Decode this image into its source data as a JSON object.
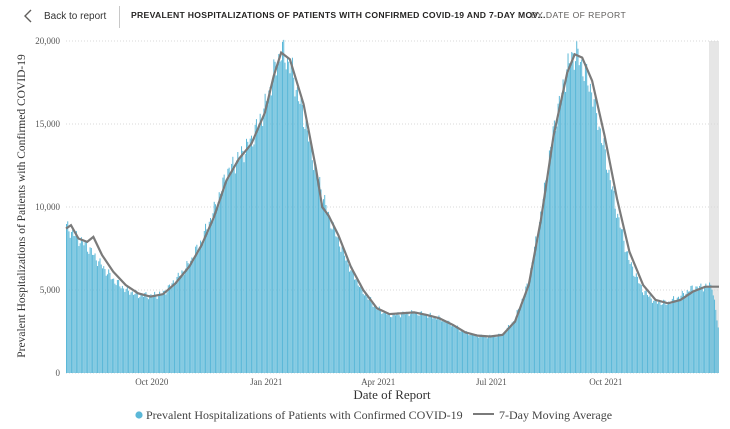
{
  "header": {
    "back_label": "Back to report",
    "title": "PREVALENT HOSPITALIZATIONS OF PATIENTS WITH CONFIRMED COVID-19 AND 7-DAY MOV...",
    "subtitle": "BY DATE OF REPORT"
  },
  "colors": {
    "bars": "#5bb8d8",
    "line": "#7a7a7a",
    "grid": "#d8d8d8",
    "selection_band": "#e6e6e6"
  },
  "chart_data": {
    "type": "bar",
    "xlabel": "Date of Report",
    "ylabel": "Prevalent Hospitalizations of Patients with Confirmed COVID-19",
    "ylim": [
      0,
      20000
    ],
    "y_ticks": [
      "0",
      "5,000",
      "10,000",
      "15,000",
      "20,000"
    ],
    "x_ticks": [
      "Oct 2020",
      "Jan 2021",
      "Apr 2021",
      "Jul 2021",
      "Oct 2021"
    ],
    "x_range": [
      "2020-07-24",
      "2021-12-31"
    ],
    "legend": [
      {
        "name": "Prevalent Hospitalizations of Patients with Confirmed COVID-19",
        "marker": "dot"
      },
      {
        "name": "7-Day Moving Average",
        "marker": "line"
      }
    ],
    "legend_position": "bottom",
    "grid": true,
    "series": [
      {
        "name": "Prevalent Hospitalizations of Patients with Confirmed COVID-19",
        "kind": "bar",
        "points": [
          [
            "2020-07-24",
            8800
          ],
          [
            "2020-08-01",
            8200
          ],
          [
            "2020-08-10",
            7600
          ],
          [
            "2020-08-20",
            6600
          ],
          [
            "2020-08-31",
            5600
          ],
          [
            "2020-09-10",
            5000
          ],
          [
            "2020-09-20",
            4700
          ],
          [
            "2020-10-01",
            4650
          ],
          [
            "2020-10-10",
            4800
          ],
          [
            "2020-10-20",
            5600
          ],
          [
            "2020-10-31",
            6600
          ],
          [
            "2020-11-10",
            8000
          ],
          [
            "2020-11-20",
            9800
          ],
          [
            "2020-11-30",
            12000
          ],
          [
            "2020-12-10",
            13000
          ],
          [
            "2020-12-20",
            14000
          ],
          [
            "2020-12-31",
            16000
          ],
          [
            "2021-01-07",
            18000
          ],
          [
            "2021-01-13",
            19400
          ],
          [
            "2021-01-20",
            18600
          ],
          [
            "2021-01-31",
            15500
          ],
          [
            "2021-02-10",
            12200
          ],
          [
            "2021-02-20",
            9500
          ],
          [
            "2021-02-28",
            8000
          ],
          [
            "2021-03-10",
            6200
          ],
          [
            "2021-03-20",
            4900
          ],
          [
            "2021-03-31",
            3900
          ],
          [
            "2021-04-10",
            3500
          ],
          [
            "2021-04-20",
            3550
          ],
          [
            "2021-04-30",
            3650
          ],
          [
            "2021-05-10",
            3500
          ],
          [
            "2021-05-20",
            3300
          ],
          [
            "2021-05-31",
            2900
          ],
          [
            "2021-06-10",
            2450
          ],
          [
            "2021-06-20",
            2250
          ],
          [
            "2021-06-30",
            2200
          ],
          [
            "2021-07-10",
            2300
          ],
          [
            "2021-07-20",
            3200
          ],
          [
            "2021-07-31",
            5400
          ],
          [
            "2021-08-10",
            9500
          ],
          [
            "2021-08-20",
            14500
          ],
          [
            "2021-08-31",
            18200
          ],
          [
            "2021-09-05",
            19200
          ],
          [
            "2021-09-10",
            19000
          ],
          [
            "2021-09-20",
            17000
          ],
          [
            "2021-09-30",
            13500
          ],
          [
            "2021-10-10",
            9800
          ],
          [
            "2021-10-20",
            6800
          ],
          [
            "2021-10-31",
            5000
          ],
          [
            "2021-11-10",
            4300
          ],
          [
            "2021-11-20",
            4200
          ],
          [
            "2021-11-30",
            4600
          ],
          [
            "2021-12-10",
            5100
          ],
          [
            "2021-12-20",
            5200
          ],
          [
            "2021-12-26",
            5300
          ],
          [
            "2021-12-31",
            2700
          ]
        ]
      },
      {
        "name": "7-Day Moving Average",
        "kind": "line",
        "points": [
          [
            "2020-07-24",
            8700
          ],
          [
            "2020-07-28",
            8900
          ],
          [
            "2020-08-03",
            8100
          ],
          [
            "2020-08-10",
            7900
          ],
          [
            "2020-08-15",
            8200
          ],
          [
            "2020-08-22",
            7100
          ],
          [
            "2020-08-31",
            6100
          ],
          [
            "2020-09-10",
            5300
          ],
          [
            "2020-09-20",
            4800
          ],
          [
            "2020-09-30",
            4600
          ],
          [
            "2020-10-10",
            4750
          ],
          [
            "2020-10-20",
            5400
          ],
          [
            "2020-10-31",
            6400
          ],
          [
            "2020-11-10",
            7700
          ],
          [
            "2020-11-20",
            9400
          ],
          [
            "2020-11-30",
            11600
          ],
          [
            "2020-12-10",
            12900
          ],
          [
            "2020-12-20",
            13800
          ],
          [
            "2020-12-31",
            15700
          ],
          [
            "2021-01-07",
            17900
          ],
          [
            "2021-01-13",
            19300
          ],
          [
            "2021-01-20",
            18900
          ],
          [
            "2021-01-31",
            16200
          ],
          [
            "2021-02-10",
            12300
          ],
          [
            "2021-02-15",
            10000
          ],
          [
            "2021-02-20",
            9500
          ],
          [
            "2021-02-28",
            8300
          ],
          [
            "2021-03-10",
            6400
          ],
          [
            "2021-03-20",
            5000
          ],
          [
            "2021-03-31",
            3900
          ],
          [
            "2021-04-10",
            3550
          ],
          [
            "2021-04-20",
            3600
          ],
          [
            "2021-04-30",
            3650
          ],
          [
            "2021-05-10",
            3500
          ],
          [
            "2021-05-20",
            3300
          ],
          [
            "2021-05-31",
            2900
          ],
          [
            "2021-06-10",
            2450
          ],
          [
            "2021-06-20",
            2250
          ],
          [
            "2021-06-30",
            2200
          ],
          [
            "2021-07-10",
            2300
          ],
          [
            "2021-07-20",
            3100
          ],
          [
            "2021-07-31",
            5300
          ],
          [
            "2021-08-10",
            9300
          ],
          [
            "2021-08-20",
            14300
          ],
          [
            "2021-08-31",
            18100
          ],
          [
            "2021-09-06",
            19200
          ],
          [
            "2021-09-12",
            19000
          ],
          [
            "2021-09-20",
            17600
          ],
          [
            "2021-09-30",
            14300
          ],
          [
            "2021-10-10",
            10500
          ],
          [
            "2021-10-20",
            7300
          ],
          [
            "2021-10-31",
            5300
          ],
          [
            "2021-11-10",
            4400
          ],
          [
            "2021-11-20",
            4200
          ],
          [
            "2021-11-30",
            4400
          ],
          [
            "2021-12-10",
            4900
          ],
          [
            "2021-12-20",
            5200
          ],
          [
            "2021-12-31",
            5200
          ]
        ]
      }
    ]
  }
}
